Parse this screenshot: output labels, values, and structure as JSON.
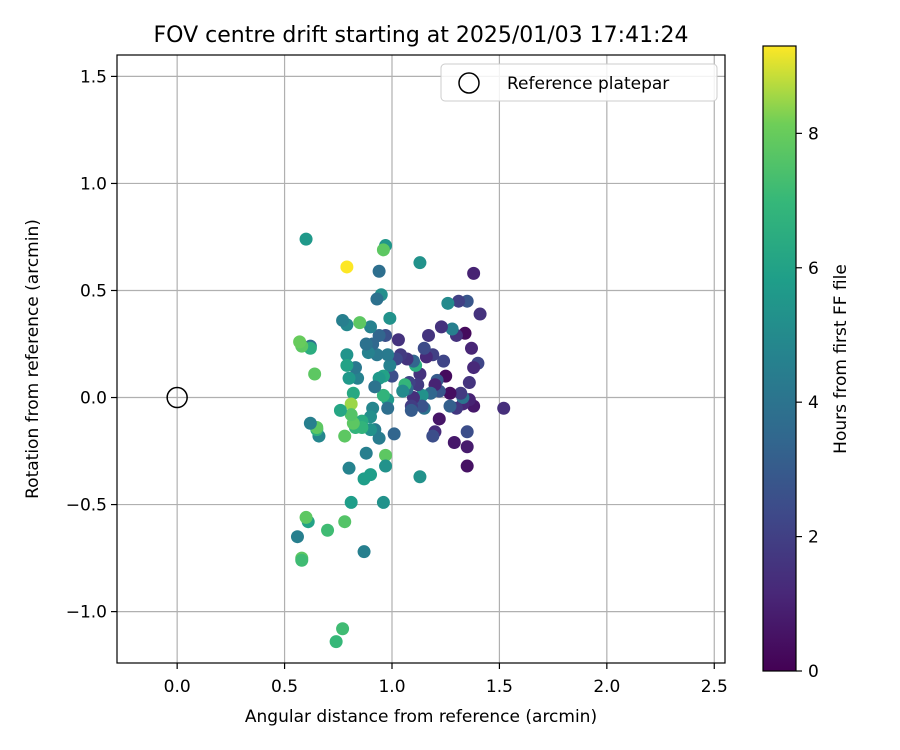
{
  "chart_data": {
    "type": "scatter",
    "title": "FOV centre drift starting at 2025/01/03 17:41:24",
    "xlabel": "Angular distance from reference (arcmin)",
    "ylabel": "Rotation from reference (arcmin)",
    "xlim": [
      -0.28,
      2.55
    ],
    "ylim": [
      -1.24,
      1.6
    ],
    "xticks": [
      0.0,
      0.5,
      1.0,
      1.5,
      2.0,
      2.5
    ],
    "xtick_labels": [
      "0.0",
      "0.5",
      "1.0",
      "1.5",
      "2.0",
      "2.5"
    ],
    "yticks": [
      -1.0,
      -0.5,
      0.0,
      0.5,
      1.0,
      1.5
    ],
    "ytick_labels": [
      "−1.0",
      "−0.5",
      "0.0",
      "0.5",
      "1.0",
      "1.5"
    ],
    "grid": true,
    "legend": {
      "placement": "top-right",
      "entries": [
        "Reference platepar"
      ]
    },
    "reference_point": {
      "x": 0.0,
      "y": 0.0,
      "label": "Reference platepar"
    },
    "colorbar": {
      "label": "Hours from first FF file",
      "colormap": "viridis",
      "range": [
        0,
        9.3
      ],
      "ticks": [
        0,
        2,
        4,
        6,
        8
      ],
      "tick_labels": [
        "0",
        "2",
        "4",
        "6",
        "8"
      ]
    },
    "points": [
      [
        1.52,
        -0.05,
        1.4
      ],
      [
        1.41,
        0.39,
        1.5
      ],
      [
        1.4,
        0.16,
        2.2
      ],
      [
        1.38,
        0.58,
        1.0
      ],
      [
        1.38,
        0.14,
        1.2
      ],
      [
        1.37,
        0.23,
        1.1
      ],
      [
        1.38,
        -0.04,
        0.7
      ],
      [
        1.36,
        0.07,
        1.6
      ],
      [
        1.36,
        -0.01,
        1.0
      ],
      [
        1.35,
        0.45,
        2.8
      ],
      [
        1.35,
        -0.16,
        2.5
      ],
      [
        1.35,
        -0.23,
        0.8
      ],
      [
        1.35,
        -0.32,
        0.5
      ],
      [
        1.34,
        0.3,
        0.3
      ],
      [
        1.33,
        -0.03,
        1.2
      ],
      [
        1.33,
        0.0,
        4.0
      ],
      [
        1.32,
        0.02,
        1.8
      ],
      [
        1.31,
        0.45,
        2.0
      ],
      [
        1.3,
        0.29,
        1.5
      ],
      [
        1.3,
        -0.05,
        1.7
      ],
      [
        1.29,
        -0.21,
        0.7
      ],
      [
        1.28,
        0.32,
        4.5
      ],
      [
        1.27,
        0.02,
        0.4
      ],
      [
        1.27,
        -0.04,
        3.2
      ],
      [
        1.26,
        0.44,
        5.0
      ],
      [
        1.25,
        0.1,
        0.3
      ],
      [
        1.24,
        0.17,
        2.2
      ],
      [
        1.23,
        0.33,
        1.5
      ],
      [
        1.22,
        0.03,
        2.8
      ],
      [
        1.22,
        -0.1,
        0.6
      ],
      [
        1.21,
        0.08,
        3.0
      ],
      [
        1.2,
        -0.16,
        1.3
      ],
      [
        1.2,
        0.06,
        1.0
      ],
      [
        1.19,
        0.2,
        2.0
      ],
      [
        1.19,
        -0.18,
        2.5
      ],
      [
        1.18,
        0.02,
        3.5
      ],
      [
        1.17,
        0.29,
        1.6
      ],
      [
        1.16,
        0.19,
        1.2
      ],
      [
        1.15,
        -0.05,
        4.0
      ],
      [
        1.15,
        0.23,
        2.4
      ],
      [
        1.14,
        0.01,
        5.3
      ],
      [
        1.14,
        -0.04,
        2.7
      ],
      [
        1.13,
        0.11,
        1.5
      ],
      [
        1.13,
        -0.37,
        5.3
      ],
      [
        1.13,
        0.63,
        5.3
      ],
      [
        1.12,
        0.06,
        1.8
      ],
      [
        1.11,
        0.15,
        6.5
      ],
      [
        1.1,
        0.0,
        1.4
      ],
      [
        1.1,
        0.17,
        3.4
      ],
      [
        1.09,
        -0.04,
        1.9
      ],
      [
        1.09,
        -0.06,
        3.0
      ],
      [
        1.08,
        0.07,
        2.1
      ],
      [
        1.07,
        0.18,
        1.6
      ],
      [
        1.07,
        0.04,
        3.6
      ],
      [
        1.06,
        0.06,
        6.9
      ],
      [
        1.05,
        0.03,
        5.0
      ],
      [
        1.04,
        0.2,
        1.8
      ],
      [
        1.03,
        0.27,
        1.5
      ],
      [
        1.02,
        0.18,
        2.3
      ],
      [
        1.01,
        -0.17,
        3.4
      ],
      [
        1.0,
        0.1,
        2.5
      ],
      [
        0.99,
        0.37,
        5.3
      ],
      [
        0.99,
        0.15,
        4.6
      ],
      [
        0.98,
        0.2,
        4.3
      ],
      [
        0.98,
        -0.01,
        5.6
      ],
      [
        0.98,
        -0.05,
        3.8
      ],
      [
        0.97,
        0.29,
        2.6
      ],
      [
        0.97,
        0.71,
        5.5
      ],
      [
        0.96,
        0.69,
        7.8
      ],
      [
        0.96,
        0.1,
        6.0
      ],
      [
        0.96,
        0.01,
        6.8
      ],
      [
        0.97,
        -0.27,
        7.8
      ],
      [
        0.97,
        -0.32,
        5.3
      ],
      [
        0.96,
        -0.49,
        5.3
      ],
      [
        0.95,
        0.48,
        5.2
      ],
      [
        0.94,
        0.59,
        3.8
      ],
      [
        0.94,
        0.29,
        3.4
      ],
      [
        0.94,
        0.09,
        5.6
      ],
      [
        0.94,
        -0.19,
        4.4
      ],
      [
        0.93,
        0.46,
        3.9
      ],
      [
        0.93,
        0.2,
        4.2
      ],
      [
        0.92,
        0.05,
        4.0
      ],
      [
        0.92,
        -0.15,
        4.4
      ],
      [
        0.91,
        0.25,
        3.5
      ],
      [
        0.91,
        -0.05,
        4.8
      ],
      [
        0.9,
        0.33,
        4.6
      ],
      [
        0.9,
        -0.09,
        5.2
      ],
      [
        0.9,
        -0.15,
        5.3
      ],
      [
        0.9,
        -0.36,
        5.8
      ],
      [
        0.89,
        0.21,
        4.6
      ],
      [
        0.88,
        -0.26,
        4.5
      ],
      [
        0.88,
        0.25,
        3.9
      ],
      [
        0.87,
        -0.38,
        5.8
      ],
      [
        0.87,
        -0.72,
        4.5
      ],
      [
        0.86,
        -0.11,
        6.4
      ],
      [
        0.86,
        -0.14,
        6.8
      ],
      [
        0.85,
        0.35,
        7.8
      ],
      [
        0.84,
        0.09,
        4.6
      ],
      [
        0.83,
        0.14,
        4.2
      ],
      [
        0.83,
        -0.14,
        6.8
      ],
      [
        0.82,
        0.02,
        6.3
      ],
      [
        0.82,
        -0.12,
        7.8
      ],
      [
        0.81,
        -0.03,
        8.5
      ],
      [
        0.81,
        -0.08,
        7.6
      ],
      [
        0.81,
        -0.49,
        5.8
      ],
      [
        0.8,
        0.09,
        5.6
      ],
      [
        0.8,
        -0.33,
        4.7
      ],
      [
        0.79,
        0.61,
        9.3
      ],
      [
        0.79,
        0.34,
        4.9
      ],
      [
        0.79,
        0.2,
        5.4
      ],
      [
        0.79,
        0.15,
        6.0
      ],
      [
        0.78,
        -0.18,
        7.8
      ],
      [
        0.78,
        -0.58,
        7.6
      ],
      [
        0.77,
        0.36,
        4.5
      ],
      [
        0.77,
        -1.08,
        7.2
      ],
      [
        0.76,
        -0.06,
        6.2
      ],
      [
        0.74,
        -1.14,
        7.0
      ],
      [
        0.7,
        -0.62,
        7.2
      ],
      [
        0.66,
        -0.18,
        4.8
      ],
      [
        0.65,
        -0.15,
        6.6
      ],
      [
        0.65,
        -0.14,
        7.8
      ],
      [
        0.64,
        0.11,
        7.8
      ],
      [
        0.62,
        0.24,
        3.8
      ],
      [
        0.62,
        0.23,
        6.5
      ],
      [
        0.62,
        -0.12,
        4.5
      ],
      [
        0.61,
        -0.58,
        6.0
      ],
      [
        0.6,
        -0.56,
        7.8
      ],
      [
        0.6,
        0.74,
        5.6
      ],
      [
        0.58,
        0.24,
        7.8
      ],
      [
        0.58,
        -0.75,
        7.8
      ],
      [
        0.58,
        -0.76,
        7.2
      ],
      [
        0.57,
        0.26,
        8.0
      ],
      [
        0.56,
        -0.65,
        4.5
      ]
    ]
  }
}
